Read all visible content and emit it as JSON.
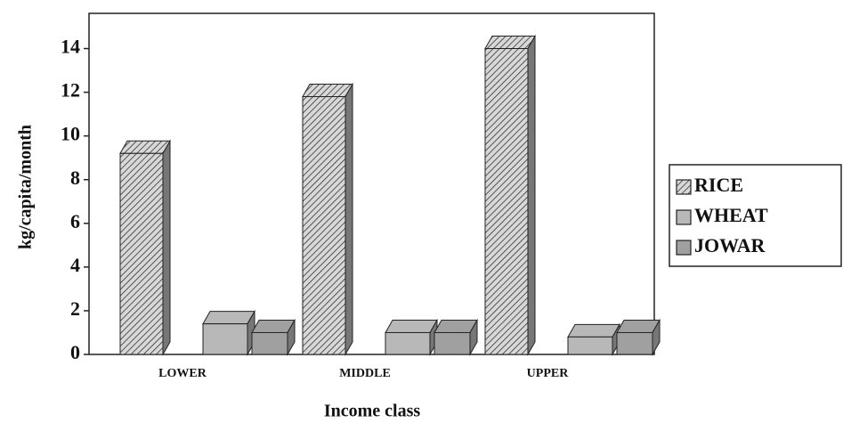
{
  "chart_data": {
    "type": "bar3d",
    "xlabel": "Income class",
    "ylabel": "kg/capita/month",
    "categories": [
      "LOWER",
      "MIDDLE",
      "UPPER"
    ],
    "series": [
      {
        "name": "RICE",
        "color": "#8a8a8a",
        "values": [
          9.2,
          11.8,
          14
        ]
      },
      {
        "name": "WHEAT",
        "color": "#b8b8b8",
        "values": [
          1.4,
          1.0,
          0.8
        ]
      },
      {
        "name": "JOWAR",
        "color": "#a0a0a0",
        "values": [
          1.0,
          1.0,
          1.0
        ]
      }
    ],
    "ylim": [
      0,
      15
    ],
    "yticks": [
      0,
      2,
      4,
      6,
      8,
      10,
      12,
      14
    ],
    "legend": "right"
  }
}
